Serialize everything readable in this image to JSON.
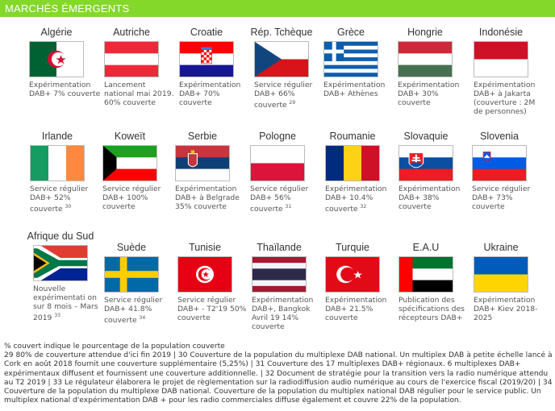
{
  "header": {
    "title": "MARCHÉS ÉMERGENTS",
    "color": "#84d82a"
  },
  "rows": [
    [
      {
        "name": "Algérie",
        "flag": "dz",
        "status": "Expérimentation DAB+ 7% couverte",
        "note": ""
      },
      {
        "name": "Autriche",
        "flag": "at",
        "status": "Lancement national mai 2019. 60% couverte",
        "note": ""
      },
      {
        "name": "Croatie",
        "flag": "hr",
        "status": "Expérimentation DAB+ 70% couverte",
        "note": ""
      },
      {
        "name": "Rép. Tchèque",
        "flag": "cz",
        "status": "Service régulier DAB+ 66% couverte",
        "note": "29"
      },
      {
        "name": "Grèce",
        "flag": "gr",
        "status": "Expérimentation DAB+ Athènes",
        "note": ""
      },
      {
        "name": "Hongrie",
        "flag": "hu",
        "status": "Expérimentation DAB+ 30% couverte",
        "note": ""
      },
      {
        "name": "Indonésie",
        "flag": "id",
        "status": "Expérimentation DAB+ à Jakarta (couverture : 2M de personnes)",
        "note": ""
      }
    ],
    [
      {
        "name": "Irlande",
        "flag": "ie",
        "status": "Service régulier DAB+ 52% couverte",
        "note": "30"
      },
      {
        "name": "Koweït",
        "flag": "kw",
        "status": "Service régulier DAB+ 100% couverte",
        "note": ""
      },
      {
        "name": "Serbie",
        "flag": "rs",
        "status": "Expérimentation DAB+ à Belgrade 35% couverte",
        "note": ""
      },
      {
        "name": "Pologne",
        "flag": "pl",
        "status": "Service régulier DAB+ 56% couverte",
        "note": "31"
      },
      {
        "name": "Roumanie",
        "flag": "ro",
        "status": "Expérimentation DAB+ 10.4% couverte",
        "note": "32"
      },
      {
        "name": "Slovaquie",
        "flag": "sk",
        "status": "Expérimentation DAB+ 38% couverte",
        "note": ""
      },
      {
        "name": "Slovenia",
        "flag": "si",
        "status": "Service régulier DAB+  73% couverte",
        "note": ""
      }
    ],
    [
      {
        "name": "Afrique du Sud",
        "flag": "za",
        "status": "Nouvelle expérimentati on sur 8 mois – Mars 2019",
        "note": "33"
      },
      {
        "name": "Suède",
        "flag": "se",
        "status": "Service régulier DAB+ 41.8% couverte",
        "note": "34"
      },
      {
        "name": "Tunisie",
        "flag": "tn",
        "status": "Service régulier DAB+ - T2'19 50% couverte",
        "note": ""
      },
      {
        "name": "Thaïlande",
        "flag": "th",
        "status": "Expérimentation DAB+, Bangkok Avril 19 14% couverte",
        "note": ""
      },
      {
        "name": "Turquie",
        "flag": "tr",
        "status": "Expérimentation DAB+ 21.5% couverte",
        "note": ""
      },
      {
        "name": "E.A.U",
        "flag": "ae",
        "status": "Publication des spécifications des récepteurs DAB+",
        "note": ""
      },
      {
        "name": "Ukraine",
        "flag": "ua",
        "status": "Expérimentation DAB+ Kiev 2018-2025",
        "note": ""
      }
    ]
  ],
  "footer": {
    "legend": "% couvert indique le pourcentage de la population couverte",
    "notes": "29 80% de couverture  attendue d'ici fin 2019  |  30 Couverture de la population du multiplexe DAB national. Un multiplex DAB à petite échelle lancé à Cork en août 2018 fournit une couverture supplémentaire (5,25%) |  31 Couverture des 17 multiplexes DAB+ régionaux. 6 multiplexes DAB+ expérimentaux diffusent et fournissent une couverture additionnelle. | 32 Document de stratégie pour la transition vers la radio numérique attendu au T2 2019 |  33 Le régulateur élaborera le projet de règlementation sur la radiodiffusion audio numérique au cours de l'exercice fiscal (2019/20) | 34 Couverture de la population du multiplexe DAB national. Couverture de la population du multiplex national DAB régulier pour le service public. Un multiplex national d'expérimentation  DAB + pour les radio commerciales diffuse également et couvre 22% de la population."
  }
}
